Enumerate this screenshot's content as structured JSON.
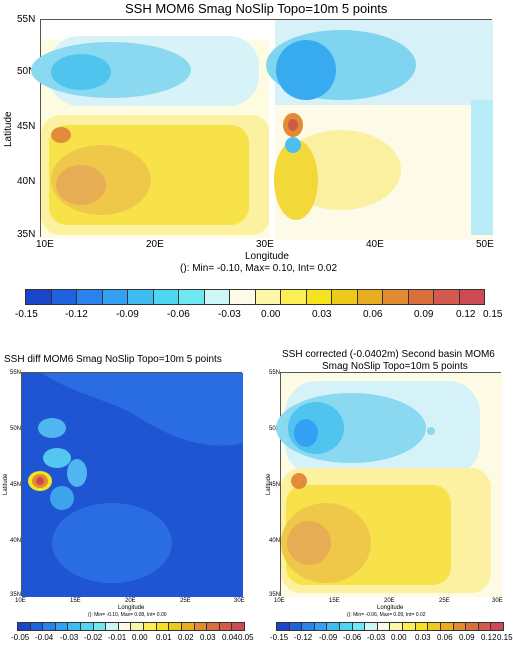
{
  "chart_data": [
    {
      "type": "heatmap",
      "title": "SSH MOM6 Smag NoSlip Topo=10m 5 points",
      "xlabel": "Longitude",
      "ylabel": "Latitude",
      "xticks": [
        "10E",
        "20E",
        "30E",
        "40E",
        "50E"
      ],
      "yticks": [
        "55N",
        "50N",
        "45N",
        "40N",
        "35N"
      ],
      "xlim": [
        10,
        51
      ],
      "ylim": [
        35,
        55
      ],
      "stats": "(): Min= -0.10, Max= 0.10, Int= 0.02",
      "colorbar_ticks": [
        "-0.15",
        "-0.12",
        "-0.09",
        "-0.06",
        "-0.03",
        "0.00",
        "0.03",
        "0.06",
        "0.09",
        "0.12",
        "0.15"
      ],
      "colorbar_colors": [
        "#1a45c8",
        "#1f62dd",
        "#2a83ec",
        "#33a0f3",
        "#3fbbf4",
        "#4fd6f3",
        "#6ee8f2",
        "#cdf6f7",
        "#fbfbe6",
        "#fbf6a8",
        "#fbef55",
        "#f6e21e",
        "#efc919",
        "#e9ab1f",
        "#e18c33",
        "#db6f3c",
        "#d45a50",
        "#ce4a52"
      ]
    },
    {
      "type": "heatmap",
      "title": "SSH diff MOM6 Smag NoSlip Topo=10m 5 points",
      "xlabel": "Longitude",
      "ylabel": "Latitude",
      "xticks": [
        "10E",
        "15E",
        "20E",
        "25E",
        "30E"
      ],
      "yticks": [
        "55N",
        "50N",
        "45N",
        "40N",
        "35N"
      ],
      "xlim": [
        10,
        30
      ],
      "ylim": [
        35,
        55
      ],
      "stats": "(): Min= -0.10, Max= 0.08, Int= 0.00",
      "colorbar_ticks": [
        "-0.05",
        "-0.04",
        "-0.03",
        "-0.02",
        "-0.01",
        "0.00",
        "0.01",
        "0.02",
        "0.03",
        "0.04",
        "0.05"
      ],
      "colorbar_colors": [
        "#1a45c8",
        "#1f62dd",
        "#2a83ec",
        "#33a0f3",
        "#3fbbf4",
        "#4fd6f3",
        "#6ee8f2",
        "#cdf6f7",
        "#fbfbe6",
        "#fbf6a8",
        "#fbef55",
        "#f6e21e",
        "#efc919",
        "#e9ab1f",
        "#e18c33",
        "#db6f3c",
        "#d45a50",
        "#ce4a52"
      ]
    },
    {
      "type": "heatmap",
      "title": "SSH corrected (-0.0402m) Second basin MOM6",
      "subtitle": "Smag NoSlip Topo=10m 5 points",
      "xlabel": "Longitude",
      "ylabel": "Latitude",
      "xticks": [
        "10E",
        "15E",
        "20E",
        "25E",
        "30E"
      ],
      "yticks": [
        "55N",
        "50N",
        "45N",
        "40N",
        "35N"
      ],
      "xlim": [
        10,
        30
      ],
      "ylim": [
        35,
        55
      ],
      "stats": "(): Min= -0.06, Max= 0.09, Int= 0.02",
      "colorbar_ticks": [
        "-0.15",
        "-0.12",
        "-0.09",
        "-0.06",
        "-0.03",
        "0.00",
        "0.03",
        "0.06",
        "0.09",
        "0.12",
        "0.15"
      ],
      "colorbar_colors": [
        "#1a45c8",
        "#1f62dd",
        "#2a83ec",
        "#33a0f3",
        "#3fbbf4",
        "#4fd6f3",
        "#6ee8f2",
        "#cdf6f7",
        "#fbfbe6",
        "#fbf6a8",
        "#fbef55",
        "#f6e21e",
        "#efc919",
        "#e9ab1f",
        "#e18c33",
        "#db6f3c",
        "#d45a50",
        "#ce4a52"
      ]
    }
  ]
}
